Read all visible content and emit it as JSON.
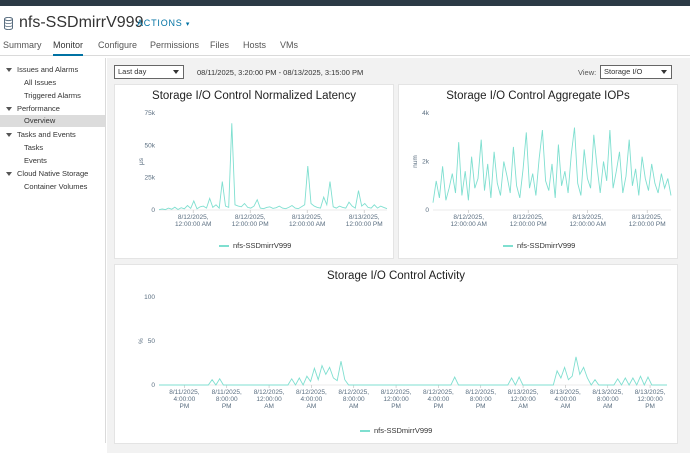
{
  "header": {
    "title": "nfs-SSDmirrV999",
    "actions_label": "ACTIONS",
    "icon": "datastore-icon"
  },
  "tabs": [
    {
      "label": "Summary",
      "active": false
    },
    {
      "label": "Monitor",
      "active": true
    },
    {
      "label": "Configure",
      "active": false
    },
    {
      "label": "Permissions",
      "active": false
    },
    {
      "label": "Files",
      "active": false
    },
    {
      "label": "Hosts",
      "active": false
    },
    {
      "label": "VMs",
      "active": false
    }
  ],
  "sidebar": {
    "items": [
      {
        "label": "Issues and Alarms",
        "level": 0
      },
      {
        "label": "All Issues",
        "level": 1
      },
      {
        "label": "Triggered Alarms",
        "level": 1
      },
      {
        "label": "Performance",
        "level": 0
      },
      {
        "label": "Overview",
        "level": 1,
        "selected": true
      },
      {
        "label": "Tasks and Events",
        "level": 0
      },
      {
        "label": "Tasks",
        "level": 1
      },
      {
        "label": "Events",
        "level": 1
      },
      {
        "label": "Cloud Native Storage",
        "level": 0
      },
      {
        "label": "Container Volumes",
        "level": 1
      }
    ]
  },
  "toolbar": {
    "period_value": "Last day",
    "date_range": "08/11/2025, 3:20:00 PM - 08/13/2025, 3:15:00 PM",
    "view_label": "View:",
    "view_value": "Storage I/O"
  },
  "colors": {
    "series": "#7fdfd0",
    "accent": "#0072a3",
    "tick_text": "#5a6e80"
  },
  "chart_data": [
    {
      "type": "line",
      "title": "Storage I/O Control Normalized Latency",
      "ylabel": "μs",
      "ylim": [
        0,
        75000
      ],
      "y_ticks": [
        "75k",
        "50k",
        "25k",
        "0"
      ],
      "x_ticks": [
        "8/12/2025,\n12:00:00 AM",
        "8/12/2025,\n12:00:00 PM",
        "8/13/2025,\n12:00:00 AM",
        "8/13/2025,\n12:00:00 PM"
      ],
      "series": [
        {
          "name": "nfs-SSDmirrV999",
          "values": [
            200,
            800,
            300,
            1500,
            600,
            2200,
            400,
            1800,
            900,
            3500,
            1200,
            7000,
            900,
            2500,
            3000,
            1500,
            9000,
            2000,
            4000,
            1500,
            22000,
            3000,
            2000,
            67000,
            4000,
            3000,
            2500,
            5000,
            2000,
            1500,
            3000,
            8000,
            1500,
            1000,
            2000,
            2500,
            1200,
            1800,
            3000,
            1500,
            1000,
            2000,
            3500,
            1500,
            1000,
            2500,
            4000,
            34000,
            5000,
            3000,
            2000,
            1500,
            10000,
            4000,
            22000,
            2500,
            1500,
            3000,
            2000,
            1500,
            6000,
            3000,
            1500,
            15000,
            3000,
            5000,
            2000,
            1500,
            4000,
            1500,
            3000,
            2000,
            1000
          ]
        }
      ]
    },
    {
      "type": "line",
      "title": "Storage I/O Control Aggregate IOPs",
      "ylabel": "num",
      "ylim": [
        0,
        4000
      ],
      "y_ticks": [
        "4k",
        "2k",
        "0"
      ],
      "x_ticks": [
        "8/12/2025,\n12:00:00 AM",
        "8/12/2025,\n12:00:00 PM",
        "8/13/2025,\n12:00:00 AM",
        "8/13/2025,\n12:00:00 PM"
      ],
      "series": [
        {
          "name": "nfs-SSDmirrV999",
          "values": [
            300,
            1200,
            500,
            1800,
            400,
            900,
            1500,
            700,
            2800,
            600,
            1600,
            400,
            2200,
            900,
            1300,
            2900,
            800,
            1900,
            500,
            2400,
            1100,
            600,
            2000,
            1400,
            700,
            2600,
            1000,
            500,
            1700,
            3200,
            900,
            1500,
            600,
            2100,
            3300,
            1200,
            800,
            1900,
            500,
            2700,
            1000,
            1600,
            700,
            2300,
            3400,
            1100,
            600,
            2500,
            1300,
            900,
            3100,
            1800,
            700,
            2000,
            1200,
            3300,
            900,
            1600,
            2400,
            700,
            1400,
            2900,
            1000,
            1700,
            600,
            2200,
            1300,
            800,
            1900,
            1100,
            700,
            1500,
            900,
            1300,
            600
          ]
        }
      ]
    },
    {
      "type": "line",
      "title": "Storage I/O Control Activity",
      "ylabel": "%",
      "ylim": [
        0,
        100
      ],
      "y_ticks": [
        "100",
        "50",
        "0"
      ],
      "x_ticks": [
        "8/11/2025,\n4:00:00\nPM",
        "8/11/2025,\n8:00:00\nPM",
        "8/12/2025,\n12:00:00\nAM",
        "8/12/2025,\n4:00:00\nAM",
        "8/12/2025,\n8:00:00\nAM",
        "8/12/2025,\n12:00:00\nPM",
        "8/12/2025,\n4:00:00\nPM",
        "8/12/2025,\n8:00:00\nPM",
        "8/13/2025,\n12:00:00\nAM",
        "8/13/2025,\n4:00:00\nAM",
        "8/13/2025,\n8:00:00\nAM",
        "8/13/2025,\n12:00:00\nPM"
      ],
      "series": [
        {
          "name": "nfs-SSDmirrV999",
          "values": [
            0,
            0,
            0,
            0,
            0,
            0,
            0,
            0,
            0,
            0,
            0,
            0,
            0,
            0,
            6,
            0,
            7,
            0,
            0,
            0,
            0,
            0,
            0,
            0,
            0,
            0,
            0,
            0,
            0,
            0,
            0,
            0,
            0,
            0,
            0,
            7,
            0,
            8,
            0,
            10,
            4,
            19,
            6,
            22,
            12,
            20,
            8,
            5,
            27,
            6,
            0,
            0,
            0,
            0,
            0,
            0,
            0,
            0,
            0,
            0,
            0,
            0,
            0,
            0,
            0,
            0,
            0,
            0,
            0,
            0,
            0,
            0,
            0,
            0,
            0,
            0,
            0,
            0,
            9,
            0,
            0,
            0,
            0,
            0,
            0,
            0,
            0,
            0,
            0,
            0,
            0,
            0,
            0,
            8,
            0,
            9,
            0,
            0,
            0,
            0,
            0,
            0,
            0,
            0,
            0,
            16,
            8,
            20,
            6,
            10,
            32,
            12,
            20,
            8,
            0,
            6,
            0,
            0,
            0,
            0,
            0,
            7,
            0,
            8,
            0,
            8,
            0,
            10,
            0,
            9,
            0,
            0,
            0,
            0,
            0
          ]
        }
      ]
    }
  ]
}
